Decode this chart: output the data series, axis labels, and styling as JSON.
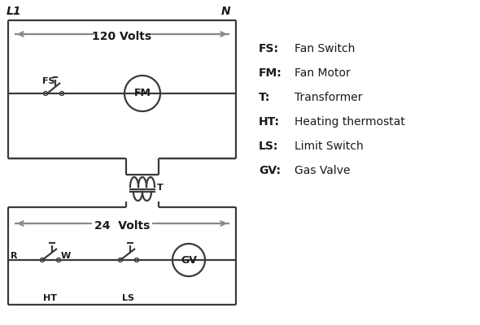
{
  "bg_color": "#ffffff",
  "line_color": "#3a3a3a",
  "arrow_color": "#888888",
  "text_color": "#1a1a1a",
  "legend_items": [
    [
      "FS:",
      "Fan Switch"
    ],
    [
      "FM:",
      "Fan Motor"
    ],
    [
      "T:",
      "Transformer"
    ],
    [
      "HT:",
      "Heating thermostat"
    ],
    [
      "LS:",
      "Limit Switch"
    ],
    [
      "GV:",
      "Gas Valve"
    ]
  ],
  "L1_label": "L1",
  "N_label": "N",
  "volts120_label": "120 Volts",
  "volts24_label": "24  Volts"
}
